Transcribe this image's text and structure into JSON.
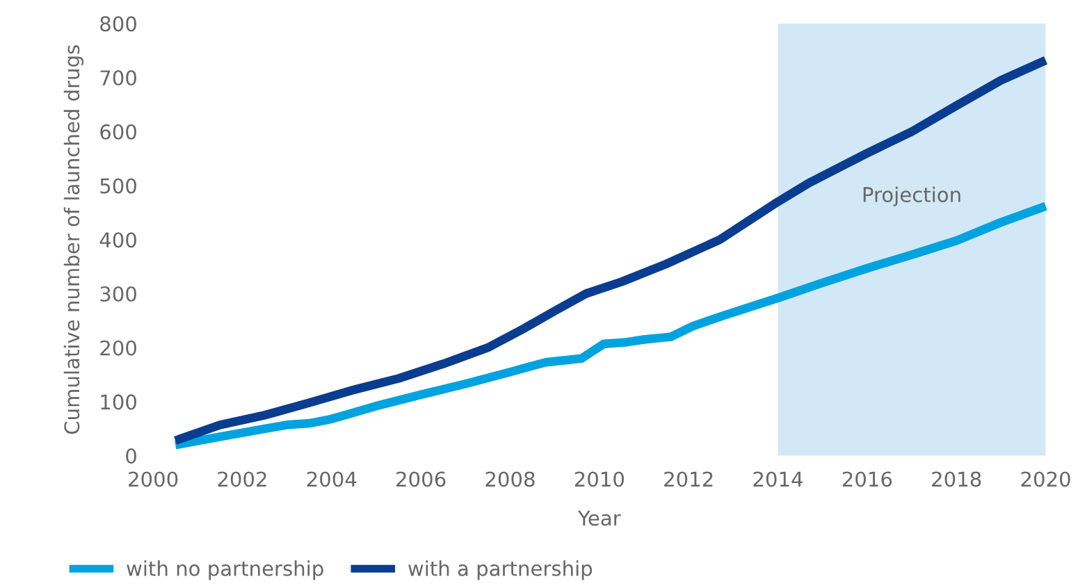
{
  "chart_data": {
    "type": "line",
    "xlabel": "Year",
    "ylabel": "Cumulative number of launched drugs",
    "xlim": [
      2000,
      2020
    ],
    "xticks": [
      2000,
      2002,
      2004,
      2006,
      2008,
      2010,
      2012,
      2014,
      2016,
      2018,
      2020
    ],
    "ylim": [
      0,
      800
    ],
    "yticks": [
      0,
      100,
      200,
      300,
      400,
      500,
      600,
      700,
      800
    ],
    "grid": false,
    "legend": "bottom",
    "line_style": "solid",
    "marker": "none",
    "bands": [
      {
        "axis": "x",
        "from": 2014,
        "to": 2020,
        "label": "Projection",
        "color": "#d2e8f6"
      }
    ],
    "series": [
      {
        "name": "with no partnership",
        "color": "#00a3e0",
        "x": [
          2000.5,
          2001.5,
          2002.5,
          2003,
          2003.5,
          2004,
          2005,
          2006,
          2007,
          2008,
          2008.8,
          2009.6,
          2010.1,
          2010.6,
          2011,
          2011.6,
          2012.1,
          2012.8,
          2014,
          2015,
          2016,
          2017,
          2018,
          2019,
          2020
        ],
        "values": [
          20,
          35,
          50,
          57,
          60,
          68,
          92,
          113,
          133,
          155,
          173,
          180,
          207,
          210,
          215,
          220,
          240,
          260,
          292,
          320,
          347,
          372,
          398,
          432,
          462
        ]
      },
      {
        "name": "with a partnership",
        "color": "#0a3d8f",
        "x": [
          2000.5,
          2001.5,
          2002.5,
          2003.5,
          2004.5,
          2005.5,
          2006.5,
          2007.5,
          2008.3,
          2009,
          2009.7,
          2010.5,
          2011.5,
          2012.7,
          2014,
          2014.7,
          2016,
          2017,
          2018,
          2019,
          2020
        ],
        "values": [
          28,
          57,
          75,
          98,
          122,
          143,
          170,
          200,
          235,
          268,
          300,
          322,
          355,
          400,
          470,
          505,
          560,
          600,
          648,
          695,
          732
        ]
      }
    ]
  }
}
